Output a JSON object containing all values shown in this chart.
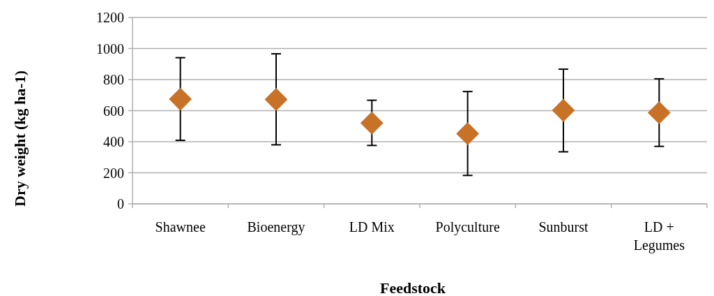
{
  "chart_data": {
    "type": "scatter",
    "xlabel": "Feedstock",
    "ylabel": "Dry weight (kg ha-1)",
    "categories": [
      "Shawnee",
      "Bioenergy",
      "LD Mix",
      "Polyculture",
      "Sunburst",
      "LD + Legumes"
    ],
    "series": [
      {
        "color": "#c87228",
        "values": [
          674,
          672,
          520,
          452,
          602,
          587
        ],
        "errors": [
          [
            409,
            941
          ],
          [
            380,
            966
          ],
          [
            376,
            667
          ],
          [
            183,
            723
          ],
          [
            335,
            867
          ],
          [
            370,
            805
          ]
        ]
      }
    ],
    "ylim": [
      0,
      1200
    ],
    "yticks": [
      0,
      200,
      400,
      600,
      800,
      1000,
      1200
    ],
    "grid": "y",
    "marker": "diamond"
  }
}
